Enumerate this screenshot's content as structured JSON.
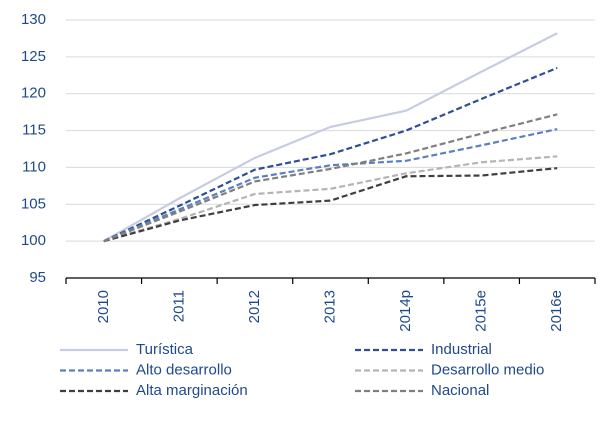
{
  "chart_data": {
    "type": "line",
    "categories": [
      "2010",
      "2011",
      "2012",
      "2013",
      "2014p",
      "2015e",
      "2016e"
    ],
    "series": [
      {
        "name": "Turística",
        "color": "#c8cce3",
        "dashed": false,
        "values": [
          100,
          105.8,
          111.3,
          115.5,
          117.7,
          123,
          128.2
        ]
      },
      {
        "name": "Industrial",
        "color": "#2e4f92",
        "dashed": true,
        "values": [
          100,
          104.8,
          109.7,
          111.8,
          115,
          119.3,
          123.5
        ]
      },
      {
        "name": "Alto desarrollo",
        "color": "#5b80c2",
        "dashed": true,
        "values": [
          100,
          104.3,
          108.6,
          110.3,
          110.9,
          113,
          115.2
        ]
      },
      {
        "name": "Desarrollo medio",
        "color": "#b4b4b4",
        "dashed": true,
        "values": [
          100,
          103,
          106.4,
          107.1,
          109.2,
          110.7,
          111.5
        ]
      },
      {
        "name": "Alta marginación",
        "color": "#3f3f3f",
        "dashed": true,
        "values": [
          100,
          102.8,
          104.9,
          105.5,
          108.8,
          108.9,
          109.9
        ]
      },
      {
        "name": "Nacional",
        "color": "#7f7f7f",
        "dashed": true,
        "values": [
          100,
          104,
          108.1,
          109.8,
          111.9,
          114.6,
          117.2
        ]
      }
    ],
    "ylim": [
      95,
      130
    ],
    "yticks": [
      95,
      100,
      105,
      110,
      115,
      120,
      125,
      130
    ],
    "grid": true
  }
}
